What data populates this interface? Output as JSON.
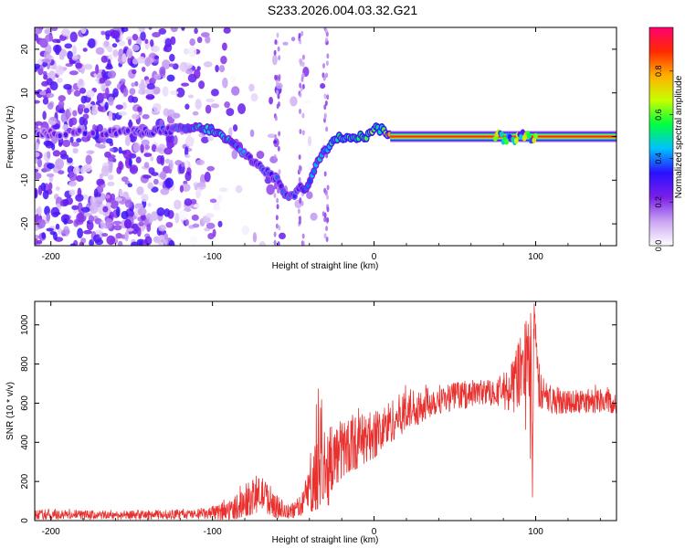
{
  "title": "S233.2026.004.03.32.G21",
  "colors": {
    "snr_line": "#e8312f",
    "frame": "#000000",
    "background": "#ffffff"
  },
  "chart_data": [
    {
      "type": "heatmap",
      "name": "spectrogram",
      "xlabel": "Height of straight line (km)",
      "ylabel": "Frequency (Hz)",
      "xlim": [
        -210,
        150
      ],
      "ylim": [
        -25,
        25
      ],
      "xticks": [
        -200,
        -100,
        0,
        100
      ],
      "yticks": [
        -20,
        -10,
        0,
        10,
        20
      ],
      "colorbar": {
        "label": "Normalized spectral amplitude",
        "range": [
          0,
          1
        ],
        "ticks": [
          "0.0",
          "0.2",
          "0.4",
          "0.6",
          "0.8"
        ],
        "tick_values": [
          0.0,
          0.2,
          0.4,
          0.6,
          0.8
        ],
        "colormap": [
          "#ffffff",
          "#c9a4f2",
          "#7a1fe8",
          "#2a10ff",
          "#00c0ff",
          "#00ff40",
          "#c8ff00",
          "#ffb000",
          "#ff2a00",
          "#ff0070"
        ]
      },
      "signal_track": {
        "x": [
          -210,
          -180,
          -150,
          -125,
          -110,
          -100,
          -90,
          -80,
          -70,
          -60,
          -55,
          -50,
          -46,
          -42,
          -38,
          -34,
          -30,
          -25,
          -20,
          -15,
          -10,
          -5,
          0,
          5,
          10,
          20,
          40,
          60,
          80,
          90,
          95,
          100,
          120,
          150
        ],
        "frequency": [
          0.5,
          1,
          1,
          1.5,
          2,
          1.5,
          -1,
          -4,
          -7,
          -10,
          -13,
          -14,
          -11,
          -12,
          -9,
          -5,
          -3,
          -1,
          0,
          0,
          0,
          0,
          2,
          1.5,
          0.5,
          0,
          0,
          0,
          0,
          -0.5,
          0,
          0,
          0,
          0
        ],
        "amplitude": [
          0.25,
          0.3,
          0.3,
          0.35,
          0.45,
          0.5,
          0.45,
          0.4,
          0.35,
          0.35,
          0.4,
          0.35,
          0.35,
          0.45,
          0.45,
          0.45,
          0.5,
          0.55,
          0.6,
          0.6,
          0.6,
          0.6,
          0.6,
          0.6,
          1.0,
          1.0,
          1.0,
          1.0,
          1.0,
          0.9,
          0.85,
          1.0,
          1.0,
          1.0
        ]
      }
    },
    {
      "type": "line",
      "name": "snr",
      "xlabel": "Height of straight line (km)",
      "ylabel": "SNR (10 * v/v)",
      "xlim": [
        -210,
        150
      ],
      "ylim": [
        0,
        1120
      ],
      "xticks": [
        -200,
        -100,
        0,
        100
      ],
      "yticks": [
        0,
        200,
        400,
        600,
        800,
        1000
      ],
      "series": [
        {
          "name": "SNR",
          "x": [
            -210,
            -190,
            -170,
            -150,
            -130,
            -110,
            -100,
            -90,
            -85,
            -80,
            -75,
            -70,
            -65,
            -60,
            -55,
            -50,
            -45,
            -40,
            -35,
            -30,
            -27,
            -25,
            -20,
            -15,
            -10,
            -5,
            0,
            10,
            20,
            30,
            40,
            50,
            60,
            70,
            80,
            85,
            90,
            94,
            97,
            98,
            99,
            100,
            103,
            110,
            120,
            130,
            140,
            150
          ],
          "y": [
            30,
            30,
            28,
            28,
            30,
            32,
            35,
            50,
            70,
            100,
            120,
            140,
            110,
            70,
            40,
            50,
            80,
            160,
            230,
            300,
            250,
            320,
            360,
            380,
            400,
            420,
            430,
            500,
            560,
            600,
            620,
            640,
            650,
            660,
            670,
            700,
            760,
            850,
            950,
            150,
            1110,
            800,
            650,
            620,
            610,
            610,
            620,
            610
          ],
          "upper_envelope": [
            60,
            60,
            55,
            55,
            60,
            60,
            75,
            120,
            160,
            200,
            230,
            230,
            200,
            140,
            90,
            100,
            140,
            300,
            720,
            560,
            480,
            500,
            560,
            560,
            580,
            600,
            610,
            660,
            700,
            710,
            700,
            710,
            720,
            720,
            760,
            800,
            920,
            1020,
            1060,
            700,
            1120,
            1000,
            760,
            700,
            700,
            690,
            700,
            700
          ],
          "lower_envelope": [
            5,
            5,
            5,
            5,
            5,
            5,
            5,
            5,
            10,
            20,
            30,
            40,
            20,
            10,
            5,
            10,
            20,
            40,
            60,
            120,
            40,
            150,
            200,
            240,
            270,
            300,
            320,
            400,
            460,
            500,
            530,
            560,
            570,
            580,
            560,
            560,
            500,
            450,
            300,
            120,
            400,
            520,
            540,
            540,
            550,
            550,
            550,
            550
          ]
        }
      ]
    }
  ]
}
